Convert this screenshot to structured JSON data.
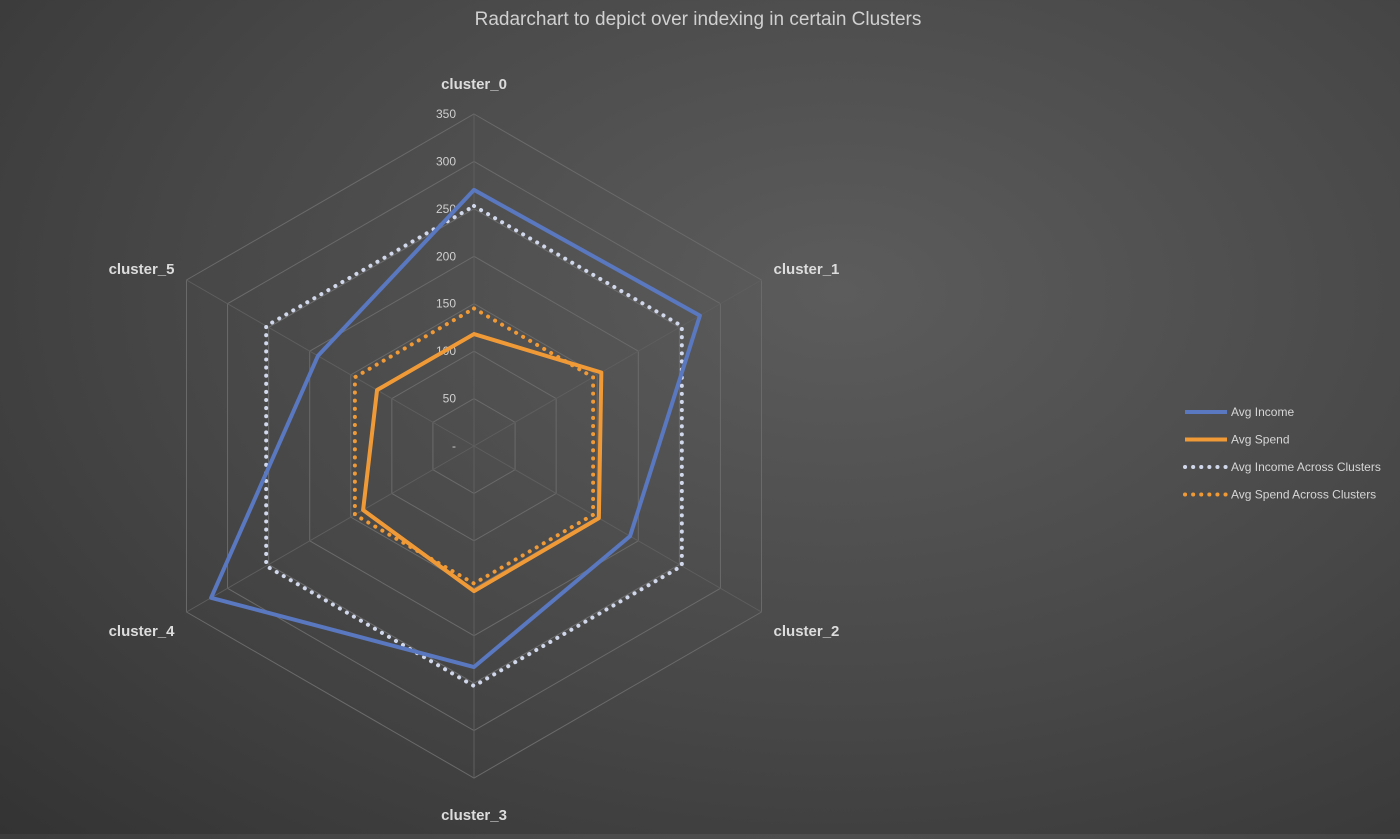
{
  "chart_data": {
    "type": "radar",
    "title": "Radarchart to depict over indexing in certain Clusters",
    "categories": [
      "cluster_0",
      "cluster_1",
      "cluster_2",
      "cluster_3",
      "cluster_4",
      "cluster_5"
    ],
    "radial_ticks": [
      "-",
      "50",
      "100",
      "150",
      "200",
      "250",
      "300",
      "350"
    ],
    "rlim": [
      0,
      350
    ],
    "series": [
      {
        "name": "Avg Income",
        "values": [
          270,
          275,
          190,
          233,
          320,
          190
        ],
        "color": "#5a78c0",
        "style": "solid"
      },
      {
        "name": "Avg Spend",
        "values": [
          118,
          155,
          152,
          153,
          135,
          118
        ],
        "color": "#f09a37",
        "style": "solid"
      },
      {
        "name": "Avg Income Across Clusters",
        "values": [
          253,
          253,
          253,
          253,
          253,
          253
        ],
        "color": "#d2d8ec",
        "style": "dotted"
      },
      {
        "name": "Avg Spend Across Clusters",
        "values": [
          145,
          145,
          145,
          145,
          145,
          145
        ],
        "color": "#f09a37",
        "style": "dotted"
      }
    ],
    "grid": true,
    "legend_position": "right"
  }
}
